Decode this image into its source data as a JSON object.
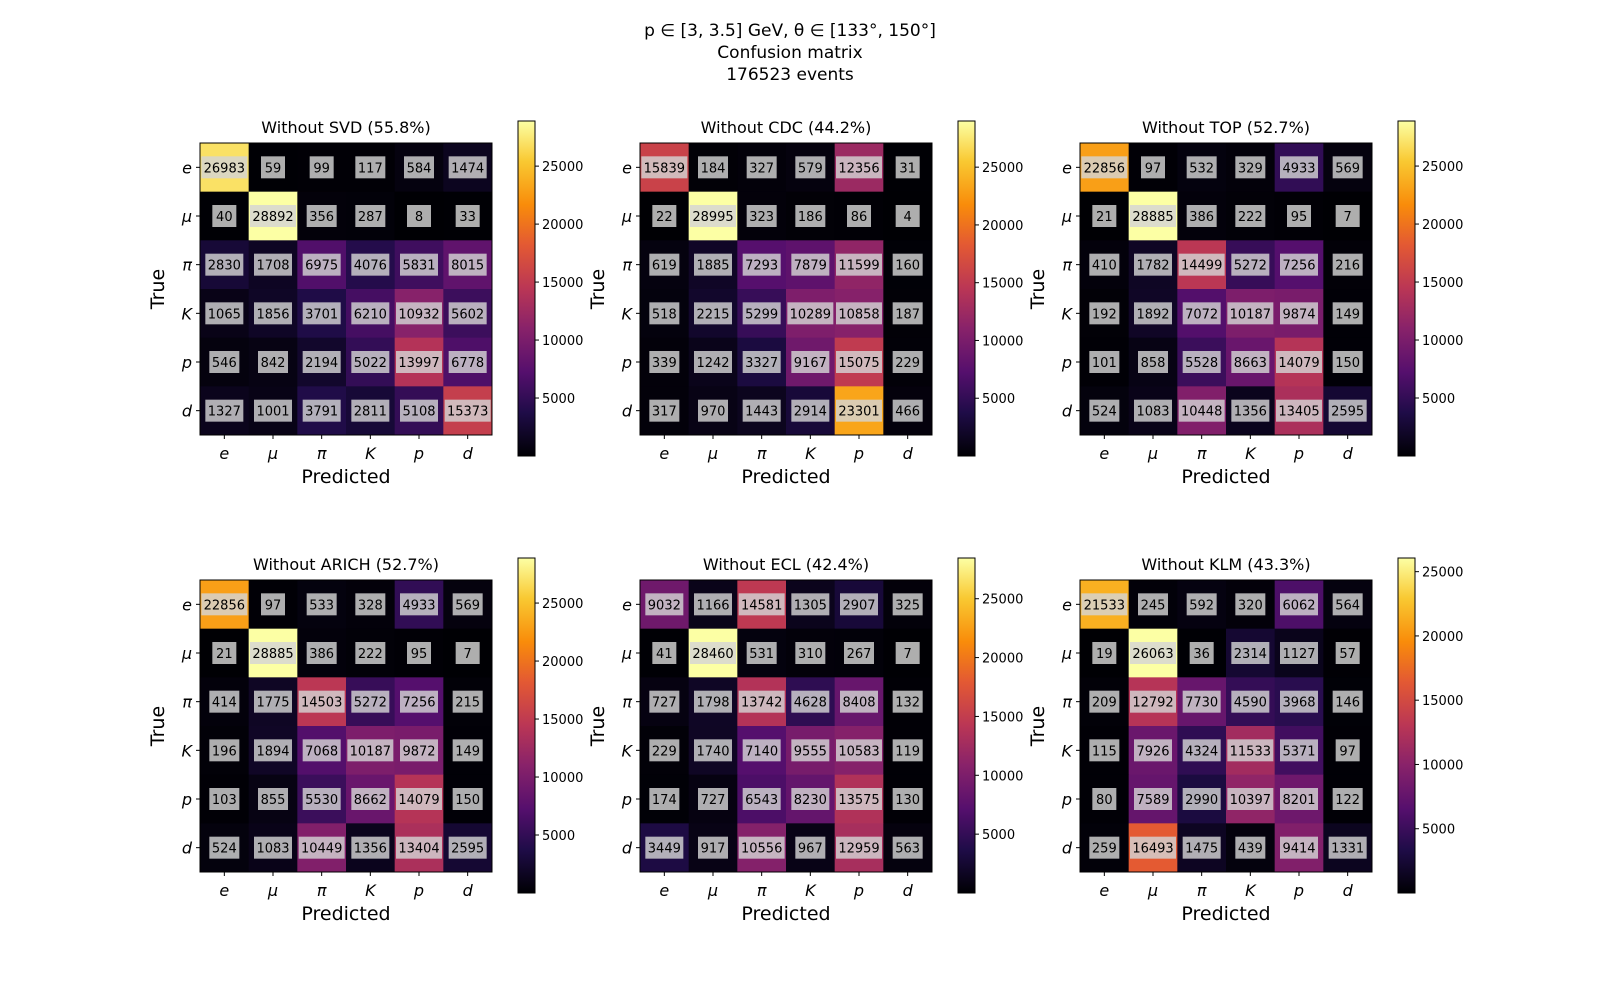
{
  "suptitle": {
    "line1": "p ∈ [3, 3.5] GeV, θ ∈ [133°, 150°]",
    "line2": "Confusion matrix",
    "line3": "176523 events"
  },
  "chart_data": [
    {
      "type": "heatmap",
      "title": "Without SVD (55.8%)",
      "xlabel": "Predicted",
      "ylabel": "True",
      "x_categories": [
        "e",
        "μ",
        "π",
        "K",
        "p",
        "d"
      ],
      "y_categories": [
        "e",
        "μ",
        "π",
        "K",
        "p",
        "d"
      ],
      "colormap": "inferno",
      "vmax": 28892,
      "colorbar_ticks": [
        5000,
        10000,
        15000,
        20000,
        25000
      ],
      "values": [
        [
          26983,
          59,
          99,
          117,
          584,
          1474
        ],
        [
          40,
          28892,
          356,
          287,
          8,
          33
        ],
        [
          2830,
          1708,
          6975,
          4076,
          5831,
          8015
        ],
        [
          1065,
          1856,
          3701,
          6210,
          10932,
          5602
        ],
        [
          546,
          842,
          2194,
          5022,
          13997,
          6778
        ],
        [
          1327,
          1001,
          3791,
          2811,
          5108,
          15373
        ]
      ]
    },
    {
      "type": "heatmap",
      "title": "Without CDC (44.2%)",
      "xlabel": "Predicted",
      "ylabel": "True",
      "x_categories": [
        "e",
        "μ",
        "π",
        "K",
        "p",
        "d"
      ],
      "y_categories": [
        "e",
        "μ",
        "π",
        "K",
        "p",
        "d"
      ],
      "colormap": "inferno",
      "vmax": 28995,
      "colorbar_ticks": [
        5000,
        10000,
        15000,
        20000,
        25000
      ],
      "values": [
        [
          15839,
          184,
          327,
          579,
          12356,
          31
        ],
        [
          22,
          28995,
          323,
          186,
          86,
          4
        ],
        [
          619,
          1885,
          7293,
          7879,
          11599,
          160
        ],
        [
          518,
          2215,
          5299,
          10289,
          10858,
          187
        ],
        [
          339,
          1242,
          3327,
          9167,
          15075,
          229
        ],
        [
          317,
          970,
          1443,
          2914,
          23301,
          466
        ]
      ]
    },
    {
      "type": "heatmap",
      "title": "Without TOP (52.7%)",
      "xlabel": "Predicted",
      "ylabel": "True",
      "x_categories": [
        "e",
        "μ",
        "π",
        "K",
        "p",
        "d"
      ],
      "y_categories": [
        "e",
        "μ",
        "π",
        "K",
        "p",
        "d"
      ],
      "colormap": "inferno",
      "vmax": 28885,
      "colorbar_ticks": [
        5000,
        10000,
        15000,
        20000,
        25000
      ],
      "values": [
        [
          22856,
          97,
          532,
          329,
          4933,
          569
        ],
        [
          21,
          28885,
          386,
          222,
          95,
          7
        ],
        [
          410,
          1782,
          14499,
          5272,
          7256,
          216
        ],
        [
          192,
          1892,
          7072,
          10187,
          9874,
          149
        ],
        [
          101,
          858,
          5528,
          8663,
          14079,
          150
        ],
        [
          524,
          1083,
          10448,
          1356,
          13405,
          2595
        ]
      ]
    },
    {
      "type": "heatmap",
      "title": "Without ARICH (52.7%)",
      "xlabel": "Predicted",
      "ylabel": "True",
      "x_categories": [
        "e",
        "μ",
        "π",
        "K",
        "p",
        "d"
      ],
      "y_categories": [
        "e",
        "μ",
        "π",
        "K",
        "p",
        "d"
      ],
      "colormap": "inferno",
      "vmax": 28885,
      "colorbar_ticks": [
        5000,
        10000,
        15000,
        20000,
        25000
      ],
      "values": [
        [
          22856,
          97,
          533,
          328,
          4933,
          569
        ],
        [
          21,
          28885,
          386,
          222,
          95,
          7
        ],
        [
          414,
          1775,
          14503,
          5272,
          7256,
          215
        ],
        [
          196,
          1894,
          7068,
          10187,
          9872,
          149
        ],
        [
          103,
          855,
          5530,
          8662,
          14079,
          150
        ],
        [
          524,
          1083,
          10449,
          1356,
          13404,
          2595
        ]
      ]
    },
    {
      "type": "heatmap",
      "title": "Without ECL (42.4%)",
      "xlabel": "Predicted",
      "ylabel": "True",
      "x_categories": [
        "e",
        "μ",
        "π",
        "K",
        "p",
        "d"
      ],
      "y_categories": [
        "e",
        "μ",
        "π",
        "K",
        "p",
        "d"
      ],
      "colormap": "inferno",
      "vmax": 28460,
      "colorbar_ticks": [
        5000,
        10000,
        15000,
        20000,
        25000
      ],
      "values": [
        [
          9032,
          1166,
          14581,
          1305,
          2907,
          325
        ],
        [
          41,
          28460,
          531,
          310,
          267,
          7
        ],
        [
          727,
          1798,
          13742,
          4628,
          8408,
          132
        ],
        [
          229,
          1740,
          7140,
          9555,
          10583,
          119
        ],
        [
          174,
          727,
          6543,
          8230,
          13575,
          130
        ],
        [
          3449,
          917,
          10556,
          967,
          12959,
          563
        ]
      ]
    },
    {
      "type": "heatmap",
      "title": "Without KLM (43.3%)",
      "xlabel": "Predicted",
      "ylabel": "True",
      "x_categories": [
        "e",
        "μ",
        "π",
        "K",
        "p",
        "d"
      ],
      "y_categories": [
        "e",
        "μ",
        "π",
        "K",
        "p",
        "d"
      ],
      "colormap": "inferno",
      "vmax": 26063,
      "colorbar_ticks": [
        5000,
        10000,
        15000,
        20000,
        25000
      ],
      "values": [
        [
          21533,
          245,
          592,
          320,
          6062,
          564
        ],
        [
          19,
          26063,
          36,
          2314,
          1127,
          57
        ],
        [
          209,
          12792,
          7730,
          4590,
          3968,
          146
        ],
        [
          115,
          7926,
          4324,
          11533,
          5371,
          97
        ],
        [
          80,
          7589,
          2990,
          10397,
          8201,
          122
        ],
        [
          259,
          16493,
          1475,
          439,
          9414,
          1331
        ]
      ]
    }
  ]
}
